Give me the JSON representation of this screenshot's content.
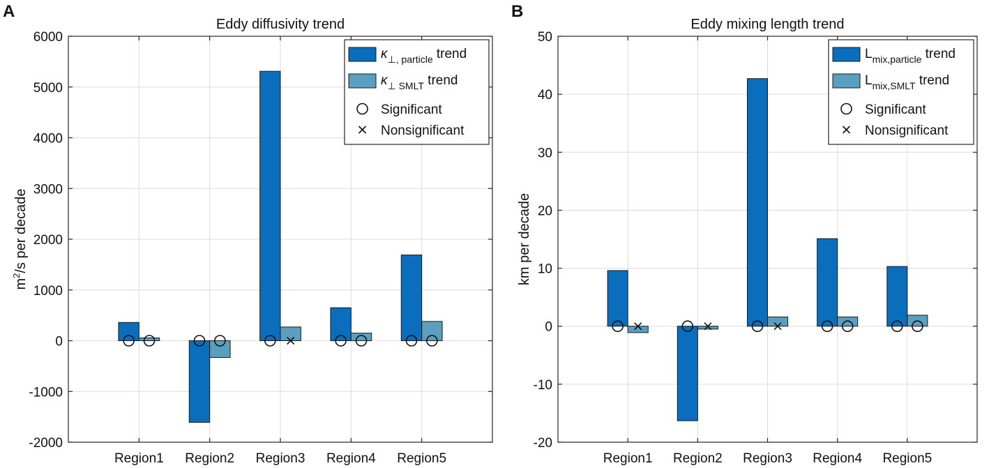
{
  "chart_data": [
    {
      "panel_label": "A",
      "type": "bar",
      "title": "Eddy diffusivity trend",
      "ylabel": {
        "base": "m",
        "sup": "2",
        "rest": "/s per decade"
      },
      "categories": [
        "Region1",
        "Region2",
        "Region3",
        "Region4",
        "Region5"
      ],
      "ylim": [
        -2000,
        6000
      ],
      "yticks": [
        -2000,
        -1000,
        0,
        1000,
        2000,
        3000,
        4000,
        5000,
        6000
      ],
      "grid": true,
      "series": [
        {
          "name": "κ⊥, particle trend",
          "legend_main": "κ",
          "legend_sub": "⊥, particle",
          "legend_tail": " trend",
          "color": "#0a6ebd",
          "values": [
            360,
            -1610,
            5310,
            650,
            1690
          ]
        },
        {
          "name": "κ⊥ SMLT trend",
          "legend_main": "κ",
          "legend_sub": "⊥ SMLT",
          "legend_tail": " trend",
          "color": "#5a9ec0",
          "values": [
            55,
            -330,
            270,
            150,
            380
          ]
        }
      ],
      "significance": [
        [
          "significant",
          "significant"
        ],
        [
          "significant",
          "significant"
        ],
        [
          "significant",
          "nonsignificant"
        ],
        [
          "significant",
          "significant"
        ],
        [
          "significant",
          "significant"
        ]
      ],
      "marker_legend": {
        "significant": "Significant",
        "nonsignificant": "Nonsignificant",
        "significant_symbol": "○",
        "nonsignificant_symbol": "×"
      },
      "legend_position": "top-right"
    },
    {
      "panel_label": "B",
      "type": "bar",
      "title": "Eddy mixing length trend",
      "ylabel": {
        "base": "km per decade",
        "sup": "",
        "rest": ""
      },
      "categories": [
        "Region1",
        "Region2",
        "Region3",
        "Region4",
        "Region5"
      ],
      "ylim": [
        -20,
        50
      ],
      "yticks": [
        -20,
        -10,
        0,
        10,
        20,
        30,
        40,
        50
      ],
      "grid": true,
      "series": [
        {
          "name": "Lmix,particle trend",
          "legend_main": "L",
          "legend_sub": "mix,particle",
          "legend_tail": " trend",
          "color": "#0a6ebd",
          "values": [
            9.6,
            -16.3,
            42.7,
            15.1,
            10.3
          ]
        },
        {
          "name": "Lmix,SMLT trend",
          "legend_main": "L",
          "legend_sub": "mix,SMLT",
          "legend_tail": " trend",
          "color": "#5a9ec0",
          "values": [
            -1.1,
            -0.5,
            1.6,
            1.6,
            1.9
          ]
        }
      ],
      "significance": [
        [
          "significant",
          "nonsignificant"
        ],
        [
          "significant",
          "nonsignificant"
        ],
        [
          "significant",
          "nonsignificant"
        ],
        [
          "significant",
          "significant"
        ],
        [
          "significant",
          "significant"
        ]
      ],
      "marker_legend": {
        "significant": "Significant",
        "nonsignificant": "Nonsignificant",
        "significant_symbol": "○",
        "nonsignificant_symbol": "×"
      },
      "legend_position": "top-right"
    }
  ]
}
